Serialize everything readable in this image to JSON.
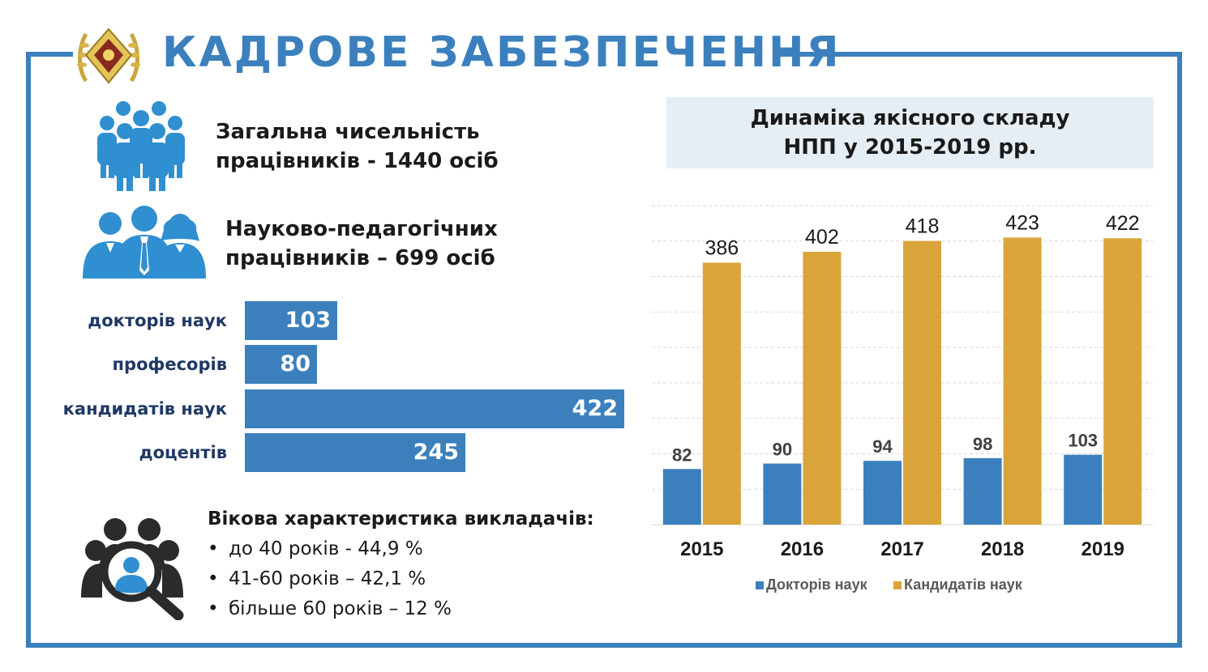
{
  "header": {
    "title": "КАДРОВЕ ЗАБЕЗПЕЧЕННЯ"
  },
  "stats": {
    "total_line1": "Загальна чисельність",
    "total_line2": "працівників - 1440 осіб",
    "npp_line1": "Науково-педагогічних",
    "npp_line2": "працівників – 699 осіб"
  },
  "composition": [
    {
      "label": "докторів наук",
      "value": 103
    },
    {
      "label": "професорів",
      "value": 80
    },
    {
      "label": "кандидатів наук",
      "value": 422
    },
    {
      "label": "доцентів",
      "value": 245
    }
  ],
  "age": {
    "title": "Вікова характеристика викладачів:",
    "items": [
      "до 40 років - 44,9 %",
      "41-60 років – 42,1 %",
      "більше 60 років – 12 %"
    ]
  },
  "colors": {
    "accent": "#3b80bd",
    "gold": "#d9a53a",
    "header_bg": "#e6eef5",
    "dark_label": "#1f3864"
  },
  "chart_data": {
    "type": "bar",
    "title_line1": "Динаміка якісного складу",
    "title_line2": "НПП у 2015-2019 рр.",
    "categories": [
      "2015",
      "2016",
      "2017",
      "2018",
      "2019"
    ],
    "series": [
      {
        "name": "Докторів наук",
        "values": [
          82,
          90,
          94,
          98,
          103
        ],
        "color": "#3b80bd"
      },
      {
        "name": "Кандидатів наук",
        "values": [
          386,
          402,
          418,
          423,
          422
        ],
        "color": "#d9a53a"
      }
    ],
    "ylim": [
      0,
      470
    ],
    "grid": true,
    "legend": "bottom"
  }
}
